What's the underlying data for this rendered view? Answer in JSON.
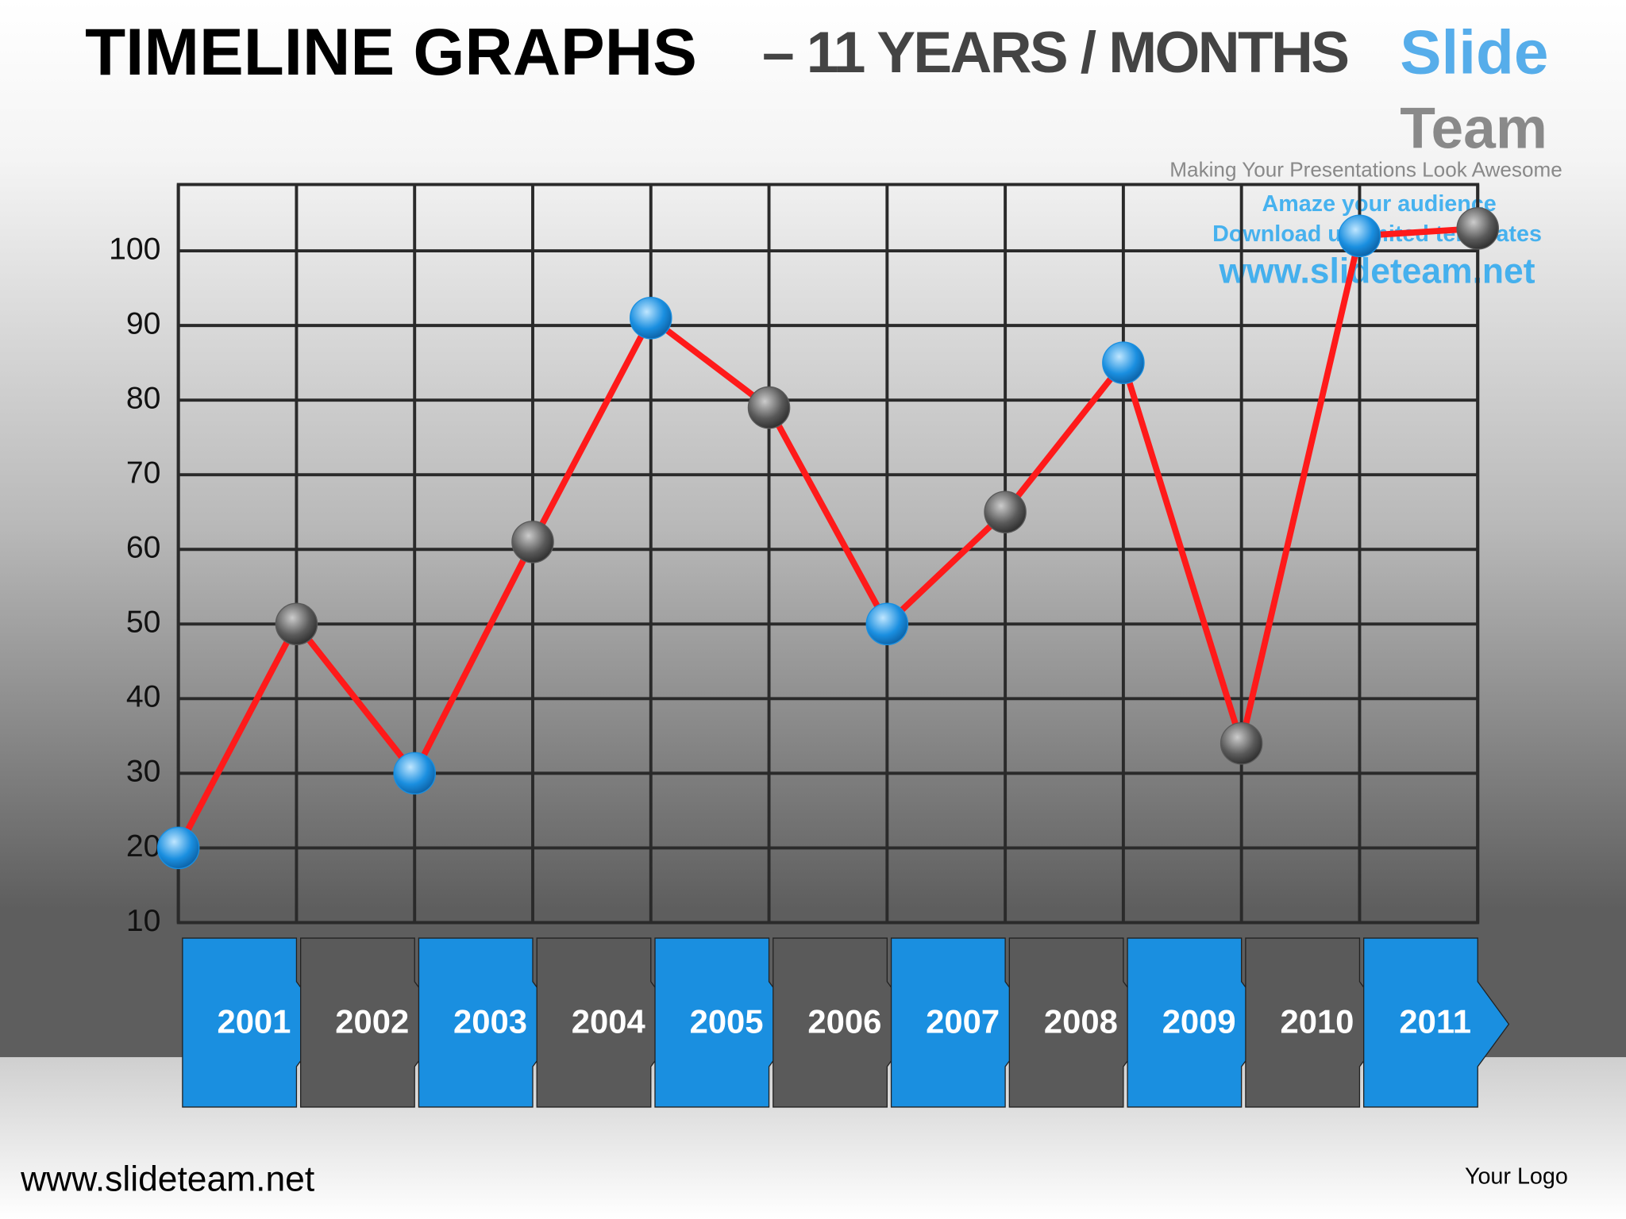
{
  "title": "TIMELINE  GRAPHS",
  "subtitle": "– 11 YEARS / MONTHS",
  "watermark": {
    "brand1": "Slide",
    "brand2": "Team",
    "tagline": "Making Your Presentations Look Awesome",
    "line1": "Amaze your audience",
    "line2": "Download unlimited templates",
    "url": "www.slideteam.net"
  },
  "footer": {
    "left": "www.slideteam.net",
    "right": "Your Logo"
  },
  "chart_data": {
    "type": "line",
    "categories": [
      "2001",
      "2002",
      "2003",
      "2004",
      "2005",
      "2006",
      "2007",
      "2008",
      "2009",
      "2010",
      "2011",
      null
    ],
    "values": [
      20,
      50,
      30,
      61,
      91,
      79,
      50,
      65,
      85,
      34,
      102,
      103
    ],
    "color": "#ff1a1a",
    "marker_colors": [
      "#1a8fe0",
      "#5a5a5a"
    ],
    "ylim": [
      10,
      110
    ],
    "yticks": [
      10,
      20,
      30,
      40,
      50,
      60,
      70,
      80,
      90,
      100
    ],
    "grid": true
  }
}
